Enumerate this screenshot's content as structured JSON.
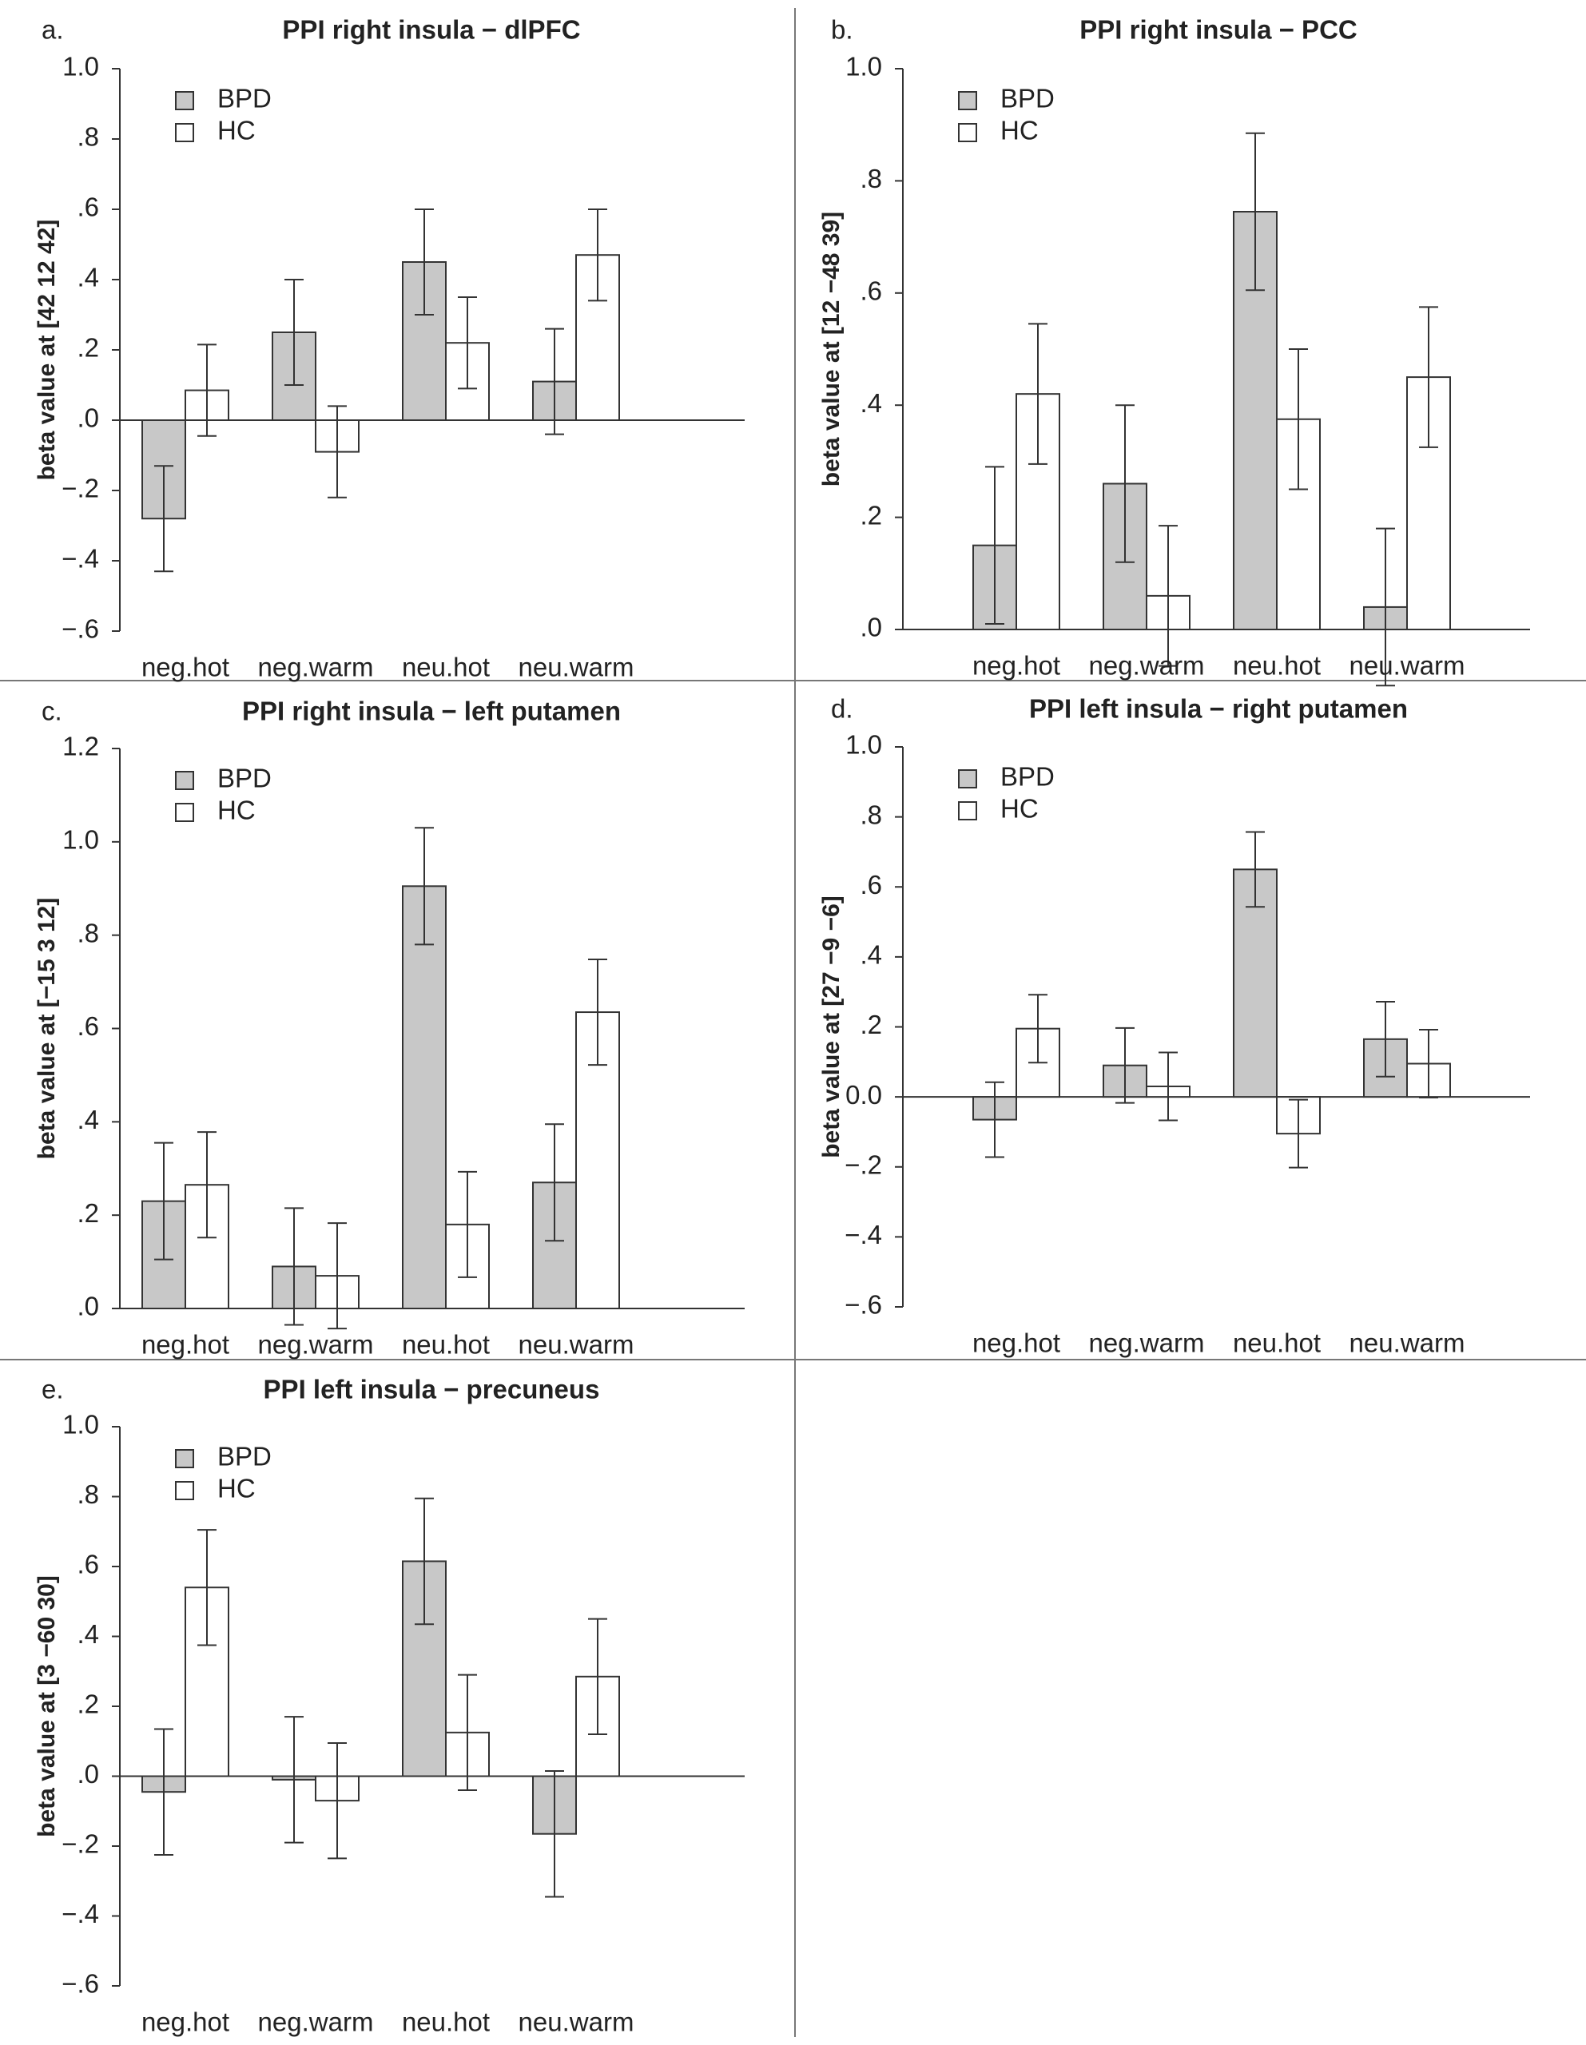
{
  "colors": {
    "BPD": "#c8c8c8",
    "HC": "#ffffff"
  },
  "chart_data": [
    {
      "type": "bar",
      "panel_letter": "a.",
      "title": "PPI right insula − dlPFC",
      "ylabel": "beta value at [42 12 42]",
      "categories": [
        "neg.hot",
        "neg.warm",
        "neu.hot",
        "neu.warm"
      ],
      "ylim": [
        -0.6,
        1.0
      ],
      "ytick_values": [
        1.0,
        0.8,
        0.6,
        0.4,
        0.2,
        0.0,
        -0.2,
        -0.4,
        -0.6
      ],
      "ytick_labels": [
        "1.0",
        ".8",
        ".6",
        ".4",
        ".2",
        ".0",
        "−.2",
        "−.4",
        "−.6"
      ],
      "legend": "top-left",
      "series": [
        {
          "name": "BPD",
          "values": [
            -0.28,
            0.25,
            0.45,
            0.11
          ],
          "err": [
            0.15,
            0.15,
            0.15,
            0.15
          ]
        },
        {
          "name": "HC",
          "values": [
            0.085,
            -0.09,
            0.22,
            0.47
          ],
          "err": [
            0.13,
            0.13,
            0.13,
            0.13
          ]
        }
      ]
    },
    {
      "type": "bar",
      "panel_letter": "b.",
      "title": "PPI right insula − PCC",
      "ylabel": "beta value at [12 −48 39]",
      "categories": [
        "neg.hot",
        "neg.warm",
        "neu.hot",
        "neu.warm"
      ],
      "ylim": [
        0.0,
        1.0
      ],
      "ytick_values": [
        1.0,
        0.8,
        0.6,
        0.4,
        0.2,
        0.0
      ],
      "ytick_labels": [
        "1.0",
        ".8",
        ".6",
        ".4",
        ".2",
        ".0"
      ],
      "legend": "top-left",
      "series": [
        {
          "name": "BPD",
          "values": [
            0.15,
            0.26,
            0.745,
            0.04
          ],
          "err": [
            0.14,
            0.14,
            0.14,
            0.14
          ]
        },
        {
          "name": "HC",
          "values": [
            0.42,
            0.06,
            0.375,
            0.45
          ],
          "err": [
            0.125,
            0.125,
            0.125,
            0.125
          ]
        }
      ]
    },
    {
      "type": "bar",
      "panel_letter": "c.",
      "title": "PPI right insula − left putamen",
      "ylabel": "beta value at [−15 3 12]",
      "categories": [
        "neg.hot",
        "neg.warm",
        "neu.hot",
        "neu.warm"
      ],
      "ylim": [
        0.0,
        1.2
      ],
      "ytick_values": [
        1.2,
        1.0,
        0.8,
        0.6,
        0.4,
        0.2,
        0.0
      ],
      "ytick_labels": [
        "1.2",
        "1.0",
        ".8",
        ".6",
        ".4",
        ".2",
        ".0"
      ],
      "legend": "top-left",
      "series": [
        {
          "name": "BPD",
          "values": [
            0.23,
            0.09,
            0.905,
            0.27
          ],
          "err": [
            0.125,
            0.125,
            0.125,
            0.125
          ]
        },
        {
          "name": "HC",
          "values": [
            0.265,
            0.07,
            0.18,
            0.635
          ],
          "err": [
            0.113,
            0.113,
            0.113,
            0.113
          ]
        }
      ]
    },
    {
      "type": "bar",
      "panel_letter": "d.",
      "title": "PPI left insula − right putamen",
      "ylabel": "beta value at [27 −9 −6]",
      "categories": [
        "neg.hot",
        "neg.warm",
        "neu.hot",
        "neu.warm"
      ],
      "ylim": [
        -0.6,
        1.0
      ],
      "ytick_values": [
        1.0,
        0.8,
        0.6,
        0.4,
        0.2,
        0.0,
        -0.2,
        -0.4,
        -0.6
      ],
      "ytick_labels": [
        "1.0",
        ".8",
        ".6",
        ".4",
        ".2",
        "0.0",
        "−.2",
        "−.4",
        "−.6"
      ],
      "legend": "top-left",
      "series": [
        {
          "name": "BPD",
          "values": [
            -0.065,
            0.09,
            0.65,
            0.165
          ],
          "err": [
            0.107,
            0.107,
            0.107,
            0.107
          ]
        },
        {
          "name": "HC",
          "values": [
            0.195,
            0.03,
            -0.105,
            0.095
          ],
          "err": [
            0.097,
            0.097,
            0.097,
            0.097
          ]
        }
      ]
    },
    {
      "type": "bar",
      "panel_letter": "e.",
      "title": "PPI left insula − precuneus",
      "ylabel": "beta value at [3 −60 30]",
      "categories": [
        "neg.hot",
        "neg.warm",
        "neu.hot",
        "neu.warm"
      ],
      "ylim": [
        -0.6,
        1.0
      ],
      "ytick_values": [
        1.0,
        0.8,
        0.6,
        0.4,
        0.2,
        0.0,
        -0.2,
        -0.4,
        -0.6
      ],
      "ytick_labels": [
        "1.0",
        ".8",
        ".6",
        ".4",
        ".2",
        ".0",
        "−.2",
        "−.4",
        "−.6"
      ],
      "legend": "top-left",
      "series": [
        {
          "name": "BPD",
          "values": [
            -0.045,
            -0.01,
            0.615,
            -0.165
          ],
          "err": [
            0.18,
            0.18,
            0.18,
            0.18
          ]
        },
        {
          "name": "HC",
          "values": [
            0.54,
            -0.07,
            0.125,
            0.285
          ],
          "err": [
            0.165,
            0.165,
            0.165,
            0.165
          ]
        }
      ]
    }
  ]
}
